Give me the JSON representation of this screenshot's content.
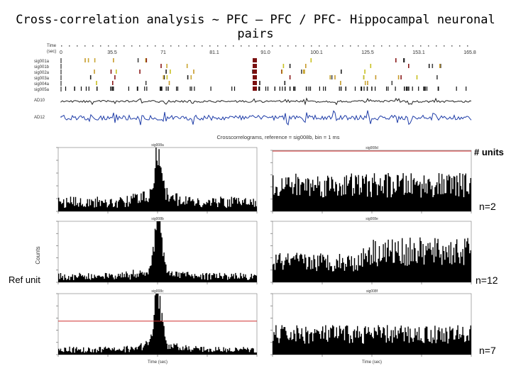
{
  "title": "Cross-correlation analysis ~ PFC – PFC / PFC- Hippocampal neuronal pairs",
  "raster": {
    "time_label": "Time\n(sec)",
    "tick_labels": [
      "0",
      "35.5",
      "71",
      "81.1",
      "91.0",
      "100.1",
      "125.5",
      "153.1",
      "165.8"
    ],
    "rows": [
      "sig001a",
      "sig001b",
      "sig002a",
      "sig003a",
      "sig004a",
      "sig005a"
    ],
    "lfp_labels": [
      "AD10",
      "AD12"
    ]
  },
  "correlogram_title": "Crosscorrelograms, reference = sig008b, bin = 1 ms",
  "y_axis_label": "Counts",
  "x_axis_label": "Time (sec)",
  "units_header": "# units",
  "ref_unit_label": "Ref unit",
  "unit_counts": [
    "n=2",
    "n=12",
    "n=7"
  ],
  "chart_data": [
    {
      "type": "bar",
      "panel": "left-1",
      "peak_bin": 0,
      "description_values": {
        "baseline": 0.18,
        "peak": 0.85
      }
    },
    {
      "type": "bar",
      "panel": "left-2",
      "peak_bin": 0,
      "description_values": {
        "baseline": 0.12,
        "peak": 1.0
      }
    },
    {
      "type": "bar",
      "panel": "left-3",
      "peak_bin": 0,
      "description_values": {
        "baseline": 0.1,
        "peak": 1.0
      }
    },
    {
      "type": "bar",
      "panel": "right-1",
      "peak_bin": null,
      "description_values": {
        "baseline": 0.45,
        "peak": 0.65
      }
    },
    {
      "type": "bar",
      "panel": "right-2",
      "peak_bin": null,
      "description_values": {
        "baseline": 0.35,
        "peak": 0.7
      }
    },
    {
      "type": "bar",
      "panel": "right-3",
      "peak_bin": null,
      "description_values": {
        "baseline": 0.35,
        "peak": 0.55
      }
    }
  ]
}
